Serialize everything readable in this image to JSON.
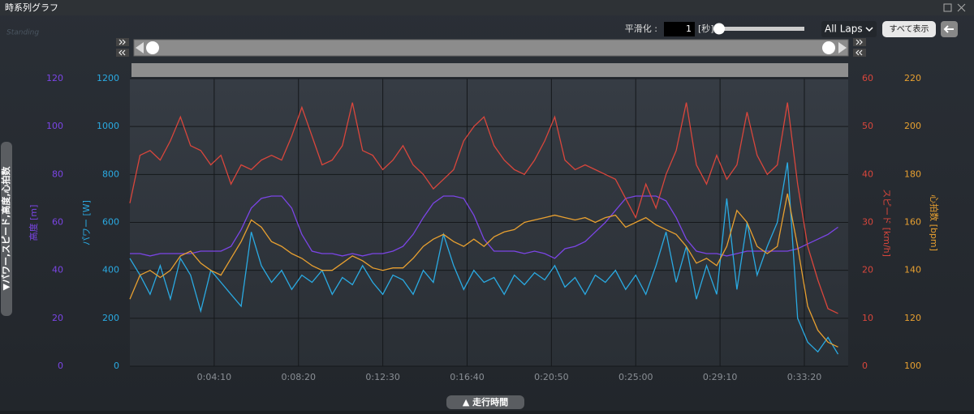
{
  "ui": {
    "title": "時系列グラフ",
    "logo": "Standing",
    "smoothing_label": "平滑化 :",
    "smoothing_value": "1",
    "smoothing_unit": "[秒]",
    "laps": "All Laps",
    "show_all": "すべて表示",
    "series_toggle": "▼パワー,スピード,高度,心拍数",
    "x_axis_toggle": "▲ 走行時間"
  },
  "chart_data": {
    "type": "line",
    "grid": true,
    "x": [
      0,
      30,
      60,
      90,
      120,
      150,
      180,
      210,
      240,
      270,
      300,
      330,
      360,
      390,
      420,
      450,
      480,
      510,
      540,
      570,
      600,
      630,
      660,
      690,
      720,
      750,
      780,
      810,
      840,
      870,
      900,
      930,
      960,
      990,
      1020,
      1050,
      1080,
      1110,
      1140,
      1170,
      1200,
      1230,
      1260,
      1290,
      1320,
      1350,
      1380,
      1410,
      1440,
      1470,
      1500,
      1530,
      1560,
      1590,
      1620,
      1650,
      1680,
      1710,
      1740,
      1770,
      1800,
      1830,
      1860,
      1890,
      1920,
      1950,
      1980,
      2010,
      2040,
      2070,
      2100
    ],
    "xlim": [
      0,
      2130
    ],
    "xticks": [
      {
        "value": 250,
        "label": "0:04:10"
      },
      {
        "value": 500,
        "label": "0:08:20"
      },
      {
        "value": 750,
        "label": "0:12:30"
      },
      {
        "value": 1000,
        "label": "0:16:40"
      },
      {
        "value": 1250,
        "label": "0:20:50"
      },
      {
        "value": 1500,
        "label": "0:25:00"
      },
      {
        "value": 1750,
        "label": "0:29:10"
      },
      {
        "value": 2000,
        "label": "0:33:20"
      }
    ],
    "series": [
      {
        "name": "高度 [m]",
        "color": "#7b45e6",
        "side": "left-outer",
        "ylim": [
          0,
          120
        ],
        "yticks": [
          0,
          20,
          40,
          60,
          80,
          100,
          120
        ],
        "values": [
          47,
          47,
          46,
          47,
          47,
          47,
          47,
          48,
          48,
          48,
          50,
          57,
          66,
          70,
          71,
          71,
          66,
          55,
          48,
          47,
          47,
          46,
          47,
          46,
          47,
          47,
          48,
          50,
          55,
          62,
          68,
          71,
          71,
          70,
          63,
          53,
          48,
          48,
          48,
          47,
          48,
          47,
          45,
          49,
          50,
          52,
          56,
          60,
          65,
          70,
          71,
          71,
          71,
          69,
          62,
          53,
          48,
          47,
          47,
          46,
          47,
          48,
          48,
          48,
          48,
          48,
          49,
          51,
          53,
          55,
          58
        ]
      },
      {
        "name": "パワー [W]",
        "color": "#2aaae2",
        "side": "left-inner",
        "ylim": [
          0,
          1200
        ],
        "yticks": [
          0,
          200,
          400,
          600,
          800,
          1000,
          1200
        ],
        "values": [
          450,
          380,
          300,
          420,
          280,
          450,
          380,
          230,
          400,
          350,
          300,
          250,
          560,
          420,
          350,
          400,
          320,
          380,
          350,
          400,
          300,
          370,
          340,
          420,
          350,
          300,
          380,
          360,
          300,
          400,
          350,
          550,
          420,
          320,
          400,
          350,
          370,
          300,
          380,
          340,
          390,
          360,
          420,
          330,
          370,
          300,
          380,
          350,
          400,
          320,
          380,
          300,
          420,
          560,
          350,
          500,
          280,
          420,
          300,
          700,
          320,
          600,
          380,
          500,
          600,
          850,
          200,
          100,
          60,
          120,
          50
        ]
      },
      {
        "name": "スピード [km/h]",
        "color": "#d9463c",
        "side": "right-inner",
        "ylim": [
          0,
          60
        ],
        "yticks": [
          0,
          10,
          20,
          30,
          40,
          50,
          60
        ],
        "values": [
          34,
          44,
          45,
          43,
          47,
          52,
          46,
          45,
          42,
          44,
          38,
          42,
          41,
          43,
          44,
          43,
          48,
          54,
          48,
          42,
          43,
          46,
          55,
          45,
          44,
          41,
          43,
          46,
          42,
          40,
          37,
          39,
          41,
          47,
          50,
          52,
          46,
          43,
          41,
          40,
          43,
          47,
          52,
          43,
          41,
          42,
          41,
          40,
          39,
          35,
          31,
          38,
          33,
          40,
          45,
          55,
          42,
          38,
          44,
          39,
          42,
          53,
          44,
          40,
          42,
          55,
          38,
          25,
          18,
          12,
          11
        ]
      },
      {
        "name": "心拍数 [bpm]",
        "color": "#e8a030",
        "side": "right-outer",
        "ylim": [
          100,
          220
        ],
        "yticks": [
          100,
          120,
          140,
          160,
          180,
          200,
          220
        ],
        "values": [
          128,
          138,
          140,
          137,
          140,
          146,
          148,
          143,
          140,
          138,
          145,
          152,
          161,
          158,
          152,
          150,
          147,
          145,
          142,
          140,
          140,
          143,
          146,
          144,
          141,
          140,
          141,
          141,
          145,
          150,
          153,
          155,
          152,
          150,
          153,
          150,
          154,
          156,
          157,
          160,
          161,
          162,
          163,
          162,
          161,
          162,
          160,
          162,
          163,
          158,
          160,
          162,
          159,
          157,
          155,
          150,
          143,
          145,
          142,
          150,
          165,
          160,
          150,
          147,
          150,
          172,
          150,
          125,
          115,
          110,
          108
        ]
      }
    ]
  }
}
